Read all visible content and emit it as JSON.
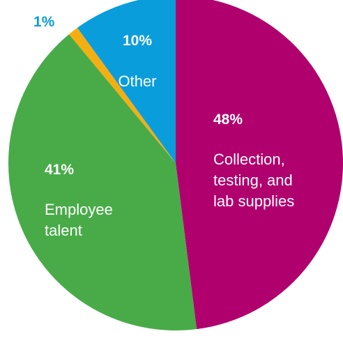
{
  "chart_data": {
    "type": "pie",
    "slices": [
      {
        "label": "Collection, testing, and lab supplies",
        "label_lines": [
          "Collection,",
          "testing, and",
          "lab supplies"
        ],
        "value": 48,
        "value_label": "48%",
        "color": "#b0006e"
      },
      {
        "label": "Employee talent",
        "label_lines": [
          "Employee",
          "talent"
        ],
        "value": 41,
        "value_label": "41%",
        "color": "#48ab48"
      },
      {
        "label": "",
        "label_lines": [],
        "value": 1,
        "value_label": "1%",
        "color": "#f5ae12"
      },
      {
        "label": "Other",
        "label_lines": [
          "Other"
        ],
        "value": 10,
        "value_label": "10%",
        "color": "#0a9ddc"
      }
    ],
    "start": "12 o'clock",
    "direction": "clockwise"
  },
  "colors": {
    "inside_text": "#ffffff",
    "outside_value": "#0a9ddc"
  }
}
